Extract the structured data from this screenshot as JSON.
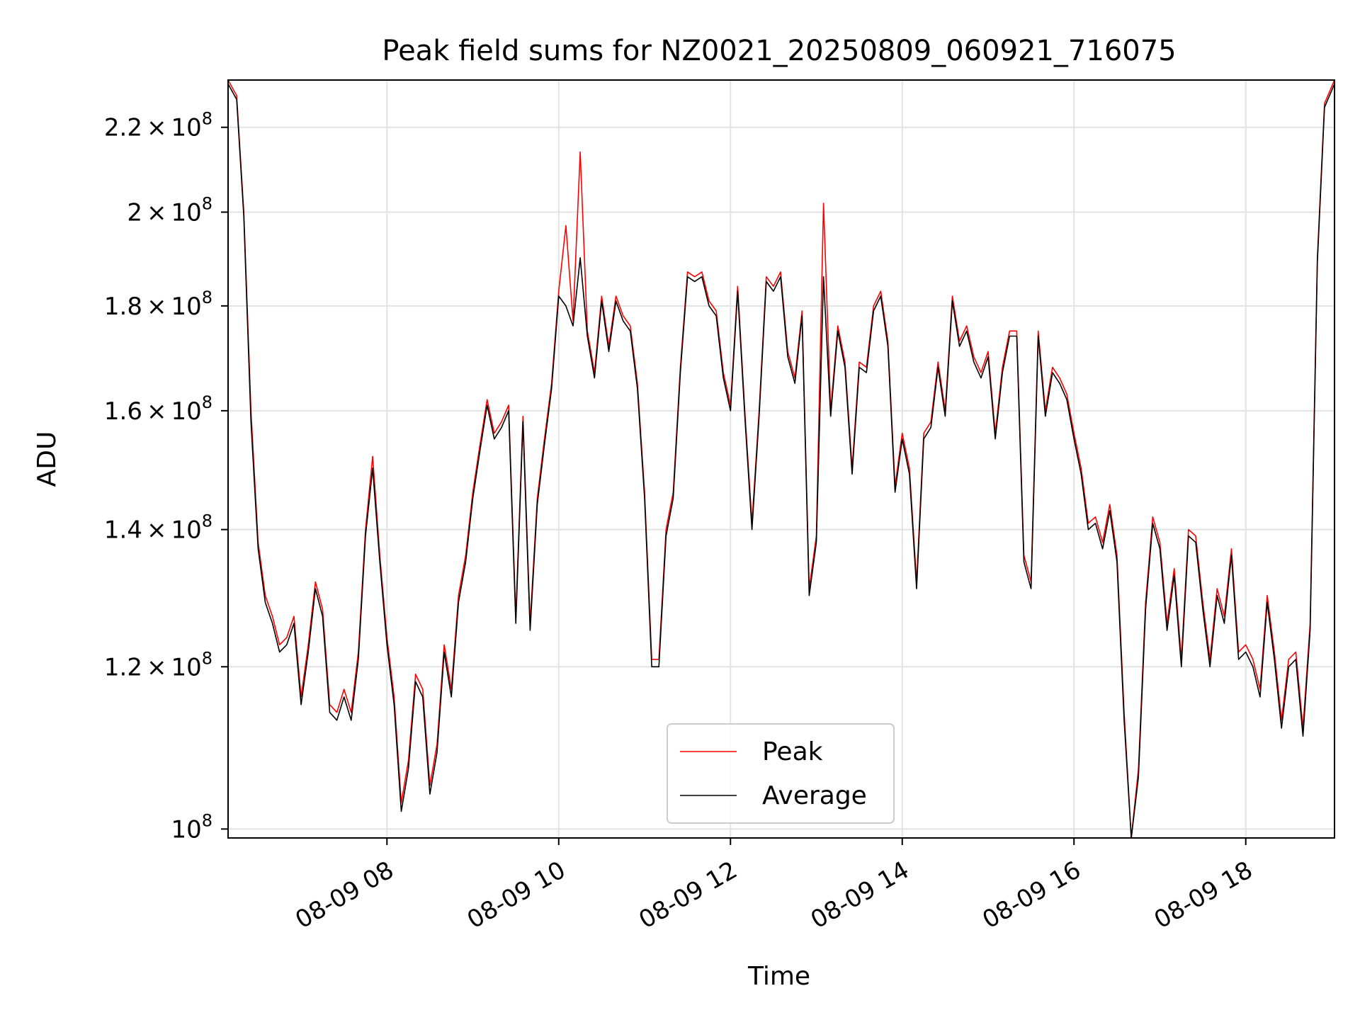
{
  "chart_data": {
    "type": "line",
    "title": "Peak field sums for NZ0021_20250809_060921_716075",
    "xlabel": "Time",
    "ylabel": "ADU",
    "yscale": "log",
    "grid": true,
    "legend_position": "lower-center",
    "xlim": [
      "08-09 06:09",
      "08-09 19:02"
    ],
    "ylim": [
      99000000,
      232000000
    ],
    "x_ticks": [
      "08-09 08",
      "08-09 10",
      "08-09 12",
      "08-09 14",
      "08-09 16",
      "08-09 18"
    ],
    "y_ticks": [
      {
        "value": 100000000,
        "mantissa": "",
        "exp": "8"
      },
      {
        "value": 120000000,
        "mantissa": "1.2",
        "exp": "8"
      },
      {
        "value": 140000000,
        "mantissa": "1.4",
        "exp": "8"
      },
      {
        "value": 160000000,
        "mantissa": "1.6",
        "exp": "8"
      },
      {
        "value": 180000000,
        "mantissa": "1.8",
        "exp": "8"
      },
      {
        "value": 200000000,
        "mantissa": "2",
        "exp": "8"
      },
      {
        "value": 220000000,
        "mantissa": "2.2",
        "exp": "8"
      }
    ],
    "series": [
      {
        "name": "Peak",
        "color": "#ff0000"
      },
      {
        "name": "Average",
        "color": "#000000"
      }
    ],
    "x": [
      "08-09 06:09",
      "08-09 06:15",
      "08-09 06:20",
      "08-09 06:25",
      "08-09 06:30",
      "08-09 06:35",
      "08-09 06:40",
      "08-09 06:45",
      "08-09 06:50",
      "08-09 06:55",
      "08-09 07:00",
      "08-09 07:05",
      "08-09 07:10",
      "08-09 07:15",
      "08-09 07:20",
      "08-09 07:25",
      "08-09 07:30",
      "08-09 07:35",
      "08-09 07:40",
      "08-09 07:45",
      "08-09 07:50",
      "08-09 07:55",
      "08-09 08:00",
      "08-09 08:05",
      "08-09 08:10",
      "08-09 08:15",
      "08-09 08:20",
      "08-09 08:25",
      "08-09 08:30",
      "08-09 08:35",
      "08-09 08:40",
      "08-09 08:45",
      "08-09 08:50",
      "08-09 08:55",
      "08-09 09:00",
      "08-09 09:05",
      "08-09 09:10",
      "08-09 09:15",
      "08-09 09:20",
      "08-09 09:25",
      "08-09 09:30",
      "08-09 09:35",
      "08-09 09:40",
      "08-09 09:45",
      "08-09 09:50",
      "08-09 09:55",
      "08-09 10:00",
      "08-09 10:05",
      "08-09 10:10",
      "08-09 10:15",
      "08-09 10:20",
      "08-09 10:25",
      "08-09 10:30",
      "08-09 10:35",
      "08-09 10:40",
      "08-09 10:45",
      "08-09 10:50",
      "08-09 10:55",
      "08-09 11:00",
      "08-09 11:05",
      "08-09 11:10",
      "08-09 11:15",
      "08-09 11:20",
      "08-09 11:25",
      "08-09 11:30",
      "08-09 11:35",
      "08-09 11:40",
      "08-09 11:45",
      "08-09 11:50",
      "08-09 11:55",
      "08-09 12:00",
      "08-09 12:05",
      "08-09 12:10",
      "08-09 12:15",
      "08-09 12:20",
      "08-09 12:25",
      "08-09 12:30",
      "08-09 12:35",
      "08-09 12:40",
      "08-09 12:45",
      "08-09 12:50",
      "08-09 12:55",
      "08-09 13:00",
      "08-09 13:05",
      "08-09 13:10",
      "08-09 13:15",
      "08-09 13:20",
      "08-09 13:25",
      "08-09 13:30",
      "08-09 13:35",
      "08-09 13:40",
      "08-09 13:45",
      "08-09 13:50",
      "08-09 13:55",
      "08-09 14:00",
      "08-09 14:05",
      "08-09 14:10",
      "08-09 14:15",
      "08-09 14:20",
      "08-09 14:25",
      "08-09 14:30",
      "08-09 14:35",
      "08-09 14:40",
      "08-09 14:45",
      "08-09 14:50",
      "08-09 14:55",
      "08-09 15:00",
      "08-09 15:05",
      "08-09 15:10",
      "08-09 15:15",
      "08-09 15:20",
      "08-09 15:25",
      "08-09 15:30",
      "08-09 15:35",
      "08-09 15:40",
      "08-09 15:45",
      "08-09 15:50",
      "08-09 15:55",
      "08-09 16:00",
      "08-09 16:05",
      "08-09 16:10",
      "08-09 16:15",
      "08-09 16:20",
      "08-09 16:25",
      "08-09 16:30",
      "08-09 16:35",
      "08-09 16:40",
      "08-09 16:45",
      "08-09 16:50",
      "08-09 16:55",
      "08-09 17:00",
      "08-09 17:05",
      "08-09 17:10",
      "08-09 17:15",
      "08-09 17:20",
      "08-09 17:25",
      "08-09 17:30",
      "08-09 17:35",
      "08-09 17:40",
      "08-09 17:45",
      "08-09 17:50",
      "08-09 17:55",
      "08-09 18:00",
      "08-09 18:05",
      "08-09 18:10",
      "08-09 18:15",
      "08-09 18:20",
      "08-09 18:25",
      "08-09 18:30",
      "08-09 18:35",
      "08-09 18:40",
      "08-09 18:45",
      "08-09 18:50",
      "08-09 18:55",
      "08-09 19:02"
    ],
    "peak": [
      232,
      228,
      200,
      160,
      138,
      130,
      127,
      123,
      124,
      127,
      116,
      123,
      132,
      128,
      115,
      114,
      117,
      114,
      122,
      140,
      152,
      136,
      124,
      116,
      103,
      108,
      119,
      117,
      105,
      110,
      123,
      117,
      130,
      136,
      146,
      154,
      162,
      156,
      158,
      161,
      127,
      159,
      126,
      145,
      155,
      165,
      183,
      197,
      177,
      214,
      175,
      167,
      182,
      172,
      182,
      178,
      176,
      165,
      146,
      121,
      121,
      140,
      146,
      168,
      187,
      186,
      187,
      181,
      179,
      167,
      161,
      184,
      160,
      141,
      160,
      186,
      184,
      187,
      171,
      166,
      179,
      131,
      139,
      202,
      160,
      176,
      169,
      150,
      169,
      168,
      180,
      183,
      173,
      147,
      156,
      150,
      132,
      156,
      158,
      169,
      160,
      182,
      173,
      176,
      170,
      167,
      171,
      156,
      168,
      175,
      175,
      136,
      132,
      175,
      160,
      168,
      166,
      163,
      156,
      150,
      141,
      142,
      138,
      144,
      136,
      114,
      99,
      107,
      129,
      142,
      138,
      126,
      134,
      121,
      140,
      139,
      129,
      121,
      131,
      127,
      137,
      122,
      123,
      121,
      117,
      130,
      122,
      113,
      121,
      122,
      112,
      126,
      190,
      226,
      232
    ],
    "average": [
      231,
      227,
      199,
      158,
      137,
      129,
      126,
      122,
      123,
      126,
      115,
      122,
      131,
      127,
      114,
      113,
      116,
      113,
      121,
      139,
      150,
      135,
      123,
      115,
      102,
      107,
      118,
      116,
      104,
      109,
      122,
      116,
      129,
      135,
      145,
      153,
      161,
      155,
      157,
      160,
      126,
      158,
      125,
      144,
      154,
      164,
      182,
      180,
      176,
      190,
      174,
      166,
      181,
      171,
      181,
      177,
      175,
      164,
      145,
      120,
      120,
      139,
      145,
      167,
      186,
      185,
      186,
      180,
      178,
      166,
      160,
      183,
      159,
      140,
      159,
      185,
      183,
      186,
      170,
      165,
      178,
      130,
      138,
      186,
      159,
      175,
      168,
      149,
      168,
      167,
      179,
      182,
      172,
      146,
      155,
      149,
      131,
      155,
      157,
      168,
      159,
      181,
      172,
      175,
      169,
      166,
      170,
      155,
      167,
      174,
      174,
      135,
      131,
      174,
      159,
      167,
      165,
      162,
      155,
      149,
      140,
      141,
      137,
      143,
      135,
      113,
      99,
      106,
      128,
      141,
      137,
      125,
      133,
      120,
      139,
      138,
      128,
      120,
      130,
      126,
      136,
      121,
      122,
      120,
      116,
      129,
      121,
      112,
      120,
      121,
      111,
      125,
      189,
      225,
      231
    ]
  }
}
